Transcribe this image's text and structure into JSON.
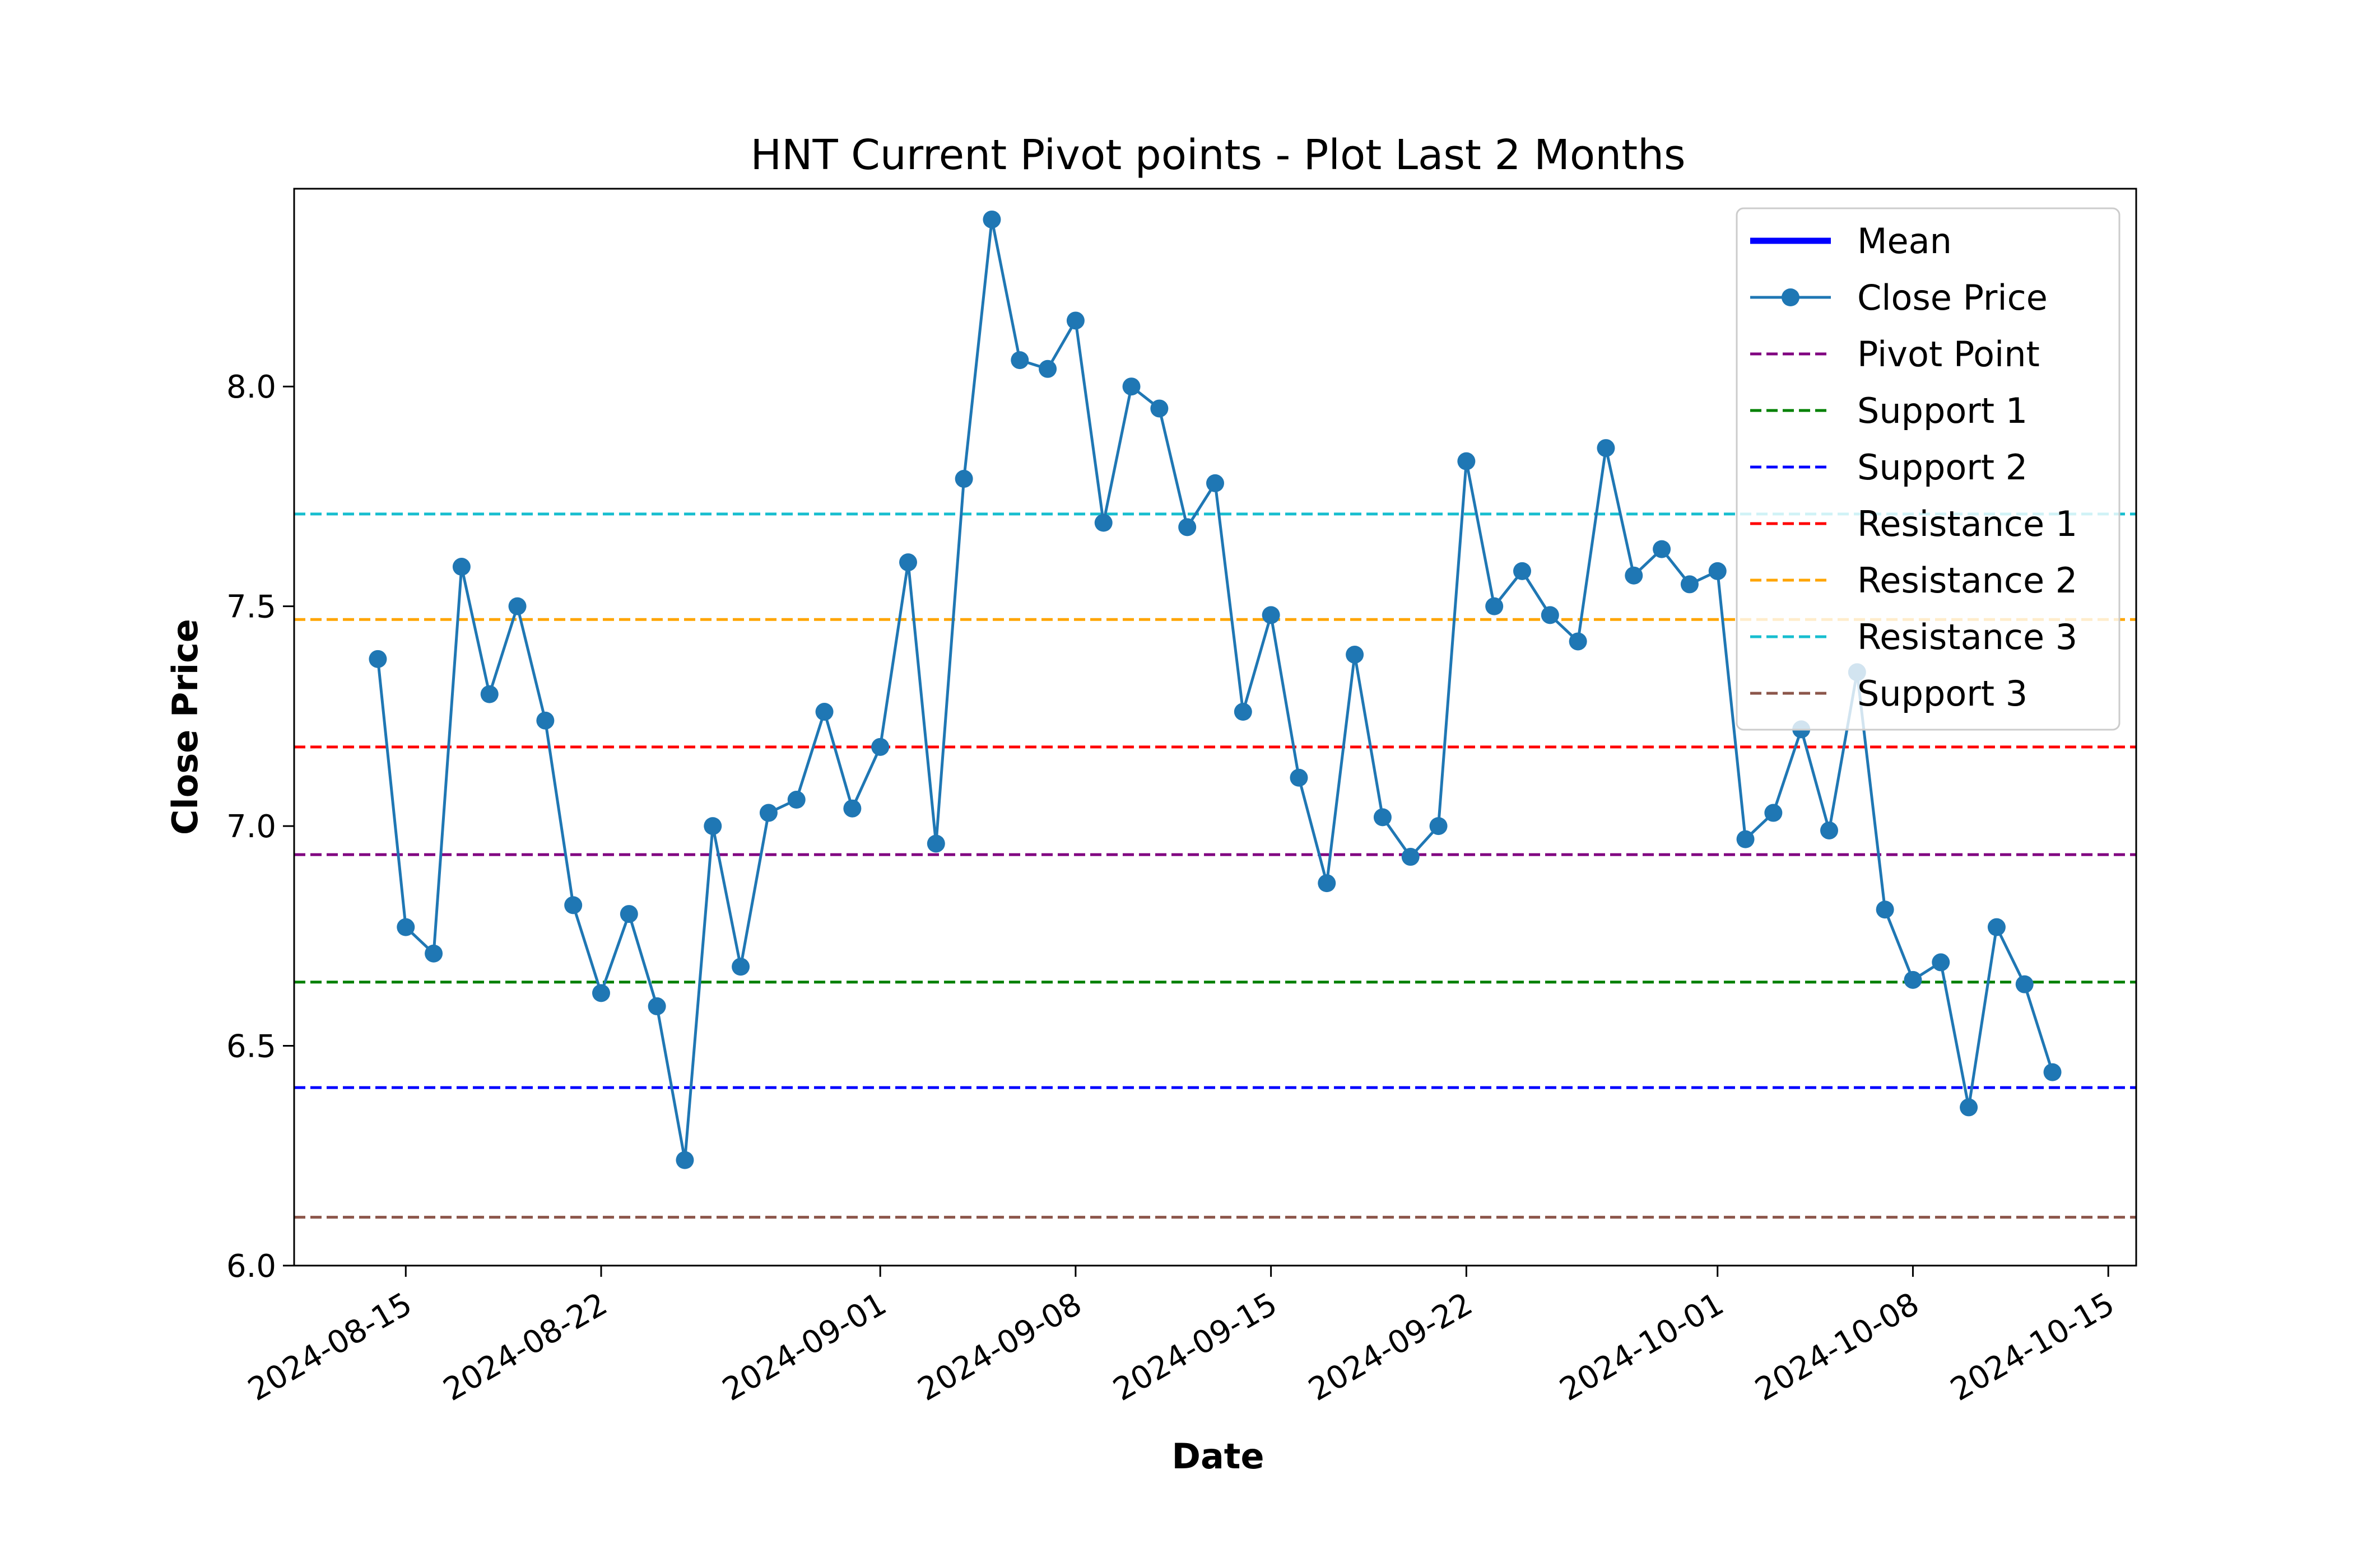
{
  "chart_data": {
    "type": "line",
    "title": "HNT Current Pivot points - Plot Last 2 Months",
    "xlabel": "Date",
    "ylabel": "Close Price",
    "x_range": [
      "2024-08-11",
      "2024-10-16"
    ],
    "ylim": [
      6.0,
      8.45
    ],
    "x_ticks": [
      "2024-08-15",
      "2024-08-22",
      "2024-09-01",
      "2024-09-08",
      "2024-09-15",
      "2024-09-22",
      "2024-10-01",
      "2024-10-08",
      "2024-10-15"
    ],
    "y_ticks": [
      "6.0",
      "6.5",
      "7.0",
      "7.5",
      "8.0"
    ],
    "grid": false,
    "legend_position": "upper-right",
    "series": [
      {
        "name": "Close Price",
        "color": "#1f77b4",
        "marker": "circle",
        "x": [
          "2024-08-14",
          "2024-08-15",
          "2024-08-16",
          "2024-08-17",
          "2024-08-18",
          "2024-08-19",
          "2024-08-20",
          "2024-08-21",
          "2024-08-22",
          "2024-08-23",
          "2024-08-24",
          "2024-08-25",
          "2024-08-26",
          "2024-08-27",
          "2024-08-28",
          "2024-08-29",
          "2024-08-30",
          "2024-08-31",
          "2024-09-01",
          "2024-09-02",
          "2024-09-03",
          "2024-09-04",
          "2024-09-05",
          "2024-09-06",
          "2024-09-07",
          "2024-09-08",
          "2024-09-09",
          "2024-09-10",
          "2024-09-11",
          "2024-09-12",
          "2024-09-13",
          "2024-09-14",
          "2024-09-15",
          "2024-09-16",
          "2024-09-17",
          "2024-09-18",
          "2024-09-19",
          "2024-09-20",
          "2024-09-21",
          "2024-09-22",
          "2024-09-23",
          "2024-09-24",
          "2024-09-25",
          "2024-09-26",
          "2024-09-27",
          "2024-09-28",
          "2024-09-29",
          "2024-09-30",
          "2024-10-01",
          "2024-10-02",
          "2024-10-03",
          "2024-10-04",
          "2024-10-05",
          "2024-10-06",
          "2024-10-07",
          "2024-10-08",
          "2024-10-09",
          "2024-10-10",
          "2024-10-11",
          "2024-10-12",
          "2024-10-13"
        ],
        "values": [
          7.38,
          6.77,
          6.71,
          7.59,
          7.3,
          7.5,
          7.24,
          6.82,
          6.62,
          6.8,
          6.59,
          6.24,
          7.0,
          6.68,
          7.03,
          7.06,
          7.26,
          7.04,
          7.18,
          7.6,
          6.96,
          7.79,
          8.38,
          8.06,
          8.04,
          8.15,
          7.69,
          8.0,
          7.95,
          7.68,
          7.78,
          7.26,
          7.48,
          7.11,
          6.87,
          7.39,
          7.02,
          6.93,
          7.0,
          7.83,
          7.5,
          7.58,
          7.48,
          7.42,
          7.86,
          7.57,
          7.63,
          7.55,
          7.58,
          6.97,
          7.03,
          7.22,
          6.99,
          7.35,
          6.81,
          6.65,
          6.69,
          6.36,
          6.77,
          6.64,
          6.44
        ]
      }
    ],
    "levels": [
      {
        "name": "Pivot Point",
        "value": 6.935,
        "color": "#800080"
      },
      {
        "name": "Support 1",
        "value": 6.645,
        "color": "#008000"
      },
      {
        "name": "Support 2",
        "value": 6.405,
        "color": "#0000ff"
      },
      {
        "name": "Resistance 1",
        "value": 7.18,
        "color": "#ff0000"
      },
      {
        "name": "Resistance 2",
        "value": 7.47,
        "color": "#ffa500"
      },
      {
        "name": "Resistance 3",
        "value": 7.71,
        "color": "#17becf"
      },
      {
        "name": "Support 3",
        "value": 6.11,
        "color": "#8c564b"
      }
    ],
    "legend": [
      {
        "label": "Mean",
        "style": "solid-thick",
        "color": "#0000ff"
      },
      {
        "label": "Close Price",
        "style": "line-marker",
        "color": "#1f77b4"
      },
      {
        "label": "Pivot Point",
        "style": "dashed",
        "color": "#800080"
      },
      {
        "label": "Support 1",
        "style": "dashed",
        "color": "#008000"
      },
      {
        "label": "Support 2",
        "style": "dashed",
        "color": "#0000ff"
      },
      {
        "label": "Resistance 1",
        "style": "dashed",
        "color": "#ff0000"
      },
      {
        "label": "Resistance 2",
        "style": "dashed",
        "color": "#ffa500"
      },
      {
        "label": "Resistance 3",
        "style": "dashed",
        "color": "#17becf"
      },
      {
        "label": "Support 3",
        "style": "dashed",
        "color": "#8c564b"
      }
    ]
  }
}
